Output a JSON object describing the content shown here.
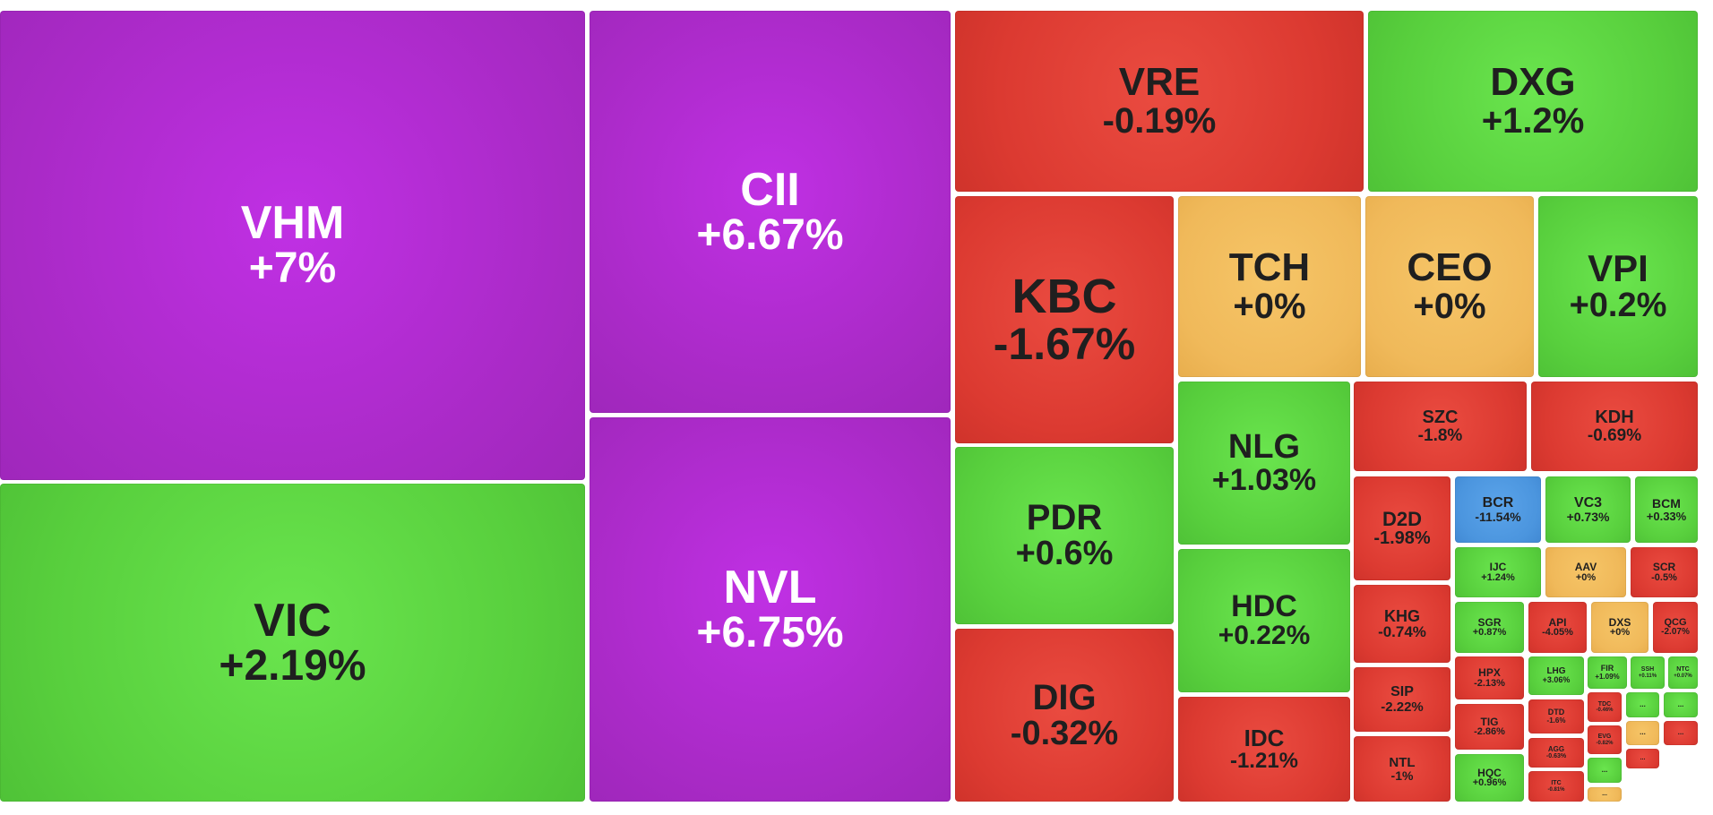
{
  "colors": {
    "ceiling": "#b62fd6",
    "up": "#5ed446",
    "down": "#e03c33",
    "unchanged": "#f2bd5e",
    "floor": "#4b95de"
  },
  "chart_data": {
    "type": "treemap",
    "title": "",
    "tiles": [
      {
        "symbol": "VHM",
        "change": "+7%",
        "value": 7,
        "color": "ceiling"
      },
      {
        "symbol": "VIC",
        "change": "+2.19%",
        "value": 2.19,
        "color": "up"
      },
      {
        "symbol": "CII",
        "change": "+6.67%",
        "value": 6.67,
        "color": "ceiling"
      },
      {
        "symbol": "NVL",
        "change": "+6.75%",
        "value": 6.75,
        "color": "ceiling"
      },
      {
        "symbol": "VRE",
        "change": "-0.19%",
        "value": -0.19,
        "color": "down"
      },
      {
        "symbol": "DXG",
        "change": "+1.2%",
        "value": 1.2,
        "color": "up"
      },
      {
        "symbol": "KBC",
        "change": "-1.67%",
        "value": -1.67,
        "color": "down"
      },
      {
        "symbol": "TCH",
        "change": "+0%",
        "value": 0,
        "color": "unchanged"
      },
      {
        "symbol": "CEO",
        "change": "+0%",
        "value": 0,
        "color": "unchanged"
      },
      {
        "symbol": "VPI",
        "change": "+0.2%",
        "value": 0.2,
        "color": "up"
      },
      {
        "symbol": "PDR",
        "change": "+0.6%",
        "value": 0.6,
        "color": "up"
      },
      {
        "symbol": "DIG",
        "change": "-0.32%",
        "value": -0.32,
        "color": "down"
      },
      {
        "symbol": "NLG",
        "change": "+1.03%",
        "value": 1.03,
        "color": "up"
      },
      {
        "symbol": "HDC",
        "change": "+0.22%",
        "value": 0.22,
        "color": "up"
      },
      {
        "symbol": "IDC",
        "change": "-1.21%",
        "value": -1.21,
        "color": "down"
      },
      {
        "symbol": "SZC",
        "change": "-1.8%",
        "value": -1.8,
        "color": "down"
      },
      {
        "symbol": "KDH",
        "change": "-0.69%",
        "value": -0.69,
        "color": "down"
      },
      {
        "symbol": "D2D",
        "change": "-1.98%",
        "value": -1.98,
        "color": "down"
      },
      {
        "symbol": "KHG",
        "change": "-0.74%",
        "value": -0.74,
        "color": "down"
      },
      {
        "symbol": "SIP",
        "change": "-2.22%",
        "value": -2.22,
        "color": "down"
      },
      {
        "symbol": "NTL",
        "change": "-1%",
        "value": -1,
        "color": "down"
      },
      {
        "symbol": "BCR",
        "change": "-11.54%",
        "value": -11.54,
        "color": "floor"
      },
      {
        "symbol": "VC3",
        "change": "+0.73%",
        "value": 0.73,
        "color": "up"
      },
      {
        "symbol": "BCM",
        "change": "+0.33%",
        "value": 0.33,
        "color": "up"
      },
      {
        "symbol": "IJC",
        "change": "+1.24%",
        "value": 1.24,
        "color": "up"
      },
      {
        "symbol": "AAV",
        "change": "+0%",
        "value": 0,
        "color": "unchanged"
      },
      {
        "symbol": "SCR",
        "change": "-0.5%",
        "value": -0.5,
        "color": "down"
      },
      {
        "symbol": "SGR",
        "change": "+0.87%",
        "value": 0.87,
        "color": "up"
      },
      {
        "symbol": "API",
        "change": "-4.05%",
        "value": -4.05,
        "color": "down"
      },
      {
        "symbol": "DXS",
        "change": "+0%",
        "value": 0,
        "color": "unchanged"
      },
      {
        "symbol": "QCG",
        "change": "-2.07%",
        "value": -2.07,
        "color": "down"
      },
      {
        "symbol": "HPX",
        "change": "-2.13%",
        "value": -2.13,
        "color": "down"
      },
      {
        "symbol": "LHG",
        "change": "+3.06%",
        "value": 3.06,
        "color": "up"
      },
      {
        "symbol": "FIR",
        "change": "+1.09%",
        "value": 1.09,
        "color": "up"
      },
      {
        "symbol": "SSH",
        "change": "+0.11%",
        "value": 0.11,
        "color": "up"
      },
      {
        "symbol": "NTC",
        "change": "+0.07%",
        "value": 0.07,
        "color": "up"
      },
      {
        "symbol": "TIG",
        "change": "-2.86%",
        "value": -2.86,
        "color": "down"
      },
      {
        "symbol": "DTD",
        "change": "-1.6%",
        "value": -1.6,
        "color": "down"
      },
      {
        "symbol": "TDC",
        "change": "-0.46%",
        "value": -0.46,
        "color": "down"
      },
      {
        "symbol": "EVG",
        "change": "-0.82%",
        "value": -0.82,
        "color": "down"
      },
      {
        "symbol": "AGG",
        "change": "-0.63%",
        "value": -0.63,
        "color": "down"
      },
      {
        "symbol": "ITC",
        "change": "-0.81%",
        "value": -0.81,
        "color": "down"
      },
      {
        "symbol": "HQC",
        "change": "+0.96%",
        "value": 0.96,
        "color": "up"
      }
    ],
    "unlabeled_tiles": [
      {
        "symbol": "...",
        "color": "up"
      },
      {
        "symbol": "...",
        "color": "up"
      },
      {
        "symbol": "...",
        "color": "unchanged"
      },
      {
        "symbol": "...",
        "color": "down"
      },
      {
        "symbol": "...",
        "color": "up"
      },
      {
        "symbol": "...",
        "color": "unchanged"
      },
      {
        "symbol": "...",
        "color": "down"
      }
    ]
  }
}
